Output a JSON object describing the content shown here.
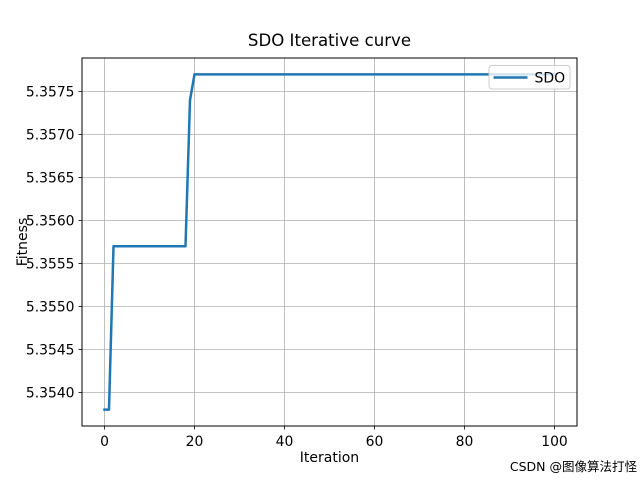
{
  "figure": {
    "title": "SDO Iterative curve",
    "xlabel": "Iteration",
    "ylabel": "Fitness",
    "legend": {
      "label": "SDO"
    },
    "watermark": "CSDN @图像算法打怪"
  },
  "colors": {
    "line": "#1f77b4",
    "grid": "#b0b0b0",
    "spine": "#000000",
    "text": "#000000",
    "watermark": "#d6d6d6",
    "legend_border": "#cccccc",
    "legend_background": "rgba(255,255,255,0.8)",
    "background": "#ffffff"
  },
  "chart_data": {
    "type": "line",
    "title": "SDO Iterative curve",
    "xlabel": "Iteration",
    "ylabel": "Fitness",
    "xlim": [
      -5,
      105
    ],
    "ylim": [
      5.35361,
      5.35789
    ],
    "xticks": [
      0,
      20,
      40,
      60,
      80,
      100
    ],
    "yticks": [
      5.354,
      5.3545,
      5.355,
      5.3555,
      5.356,
      5.3565,
      5.357,
      5.3575
    ],
    "ytick_decimals": 4,
    "grid": true,
    "legend_position": "upper right",
    "series": [
      {
        "name": "SDO",
        "x": [
          0,
          1,
          2,
          5,
          10,
          15,
          17,
          18,
          19,
          20,
          30,
          40,
          50,
          60,
          70,
          80,
          90,
          100
        ],
        "y": [
          5.3538,
          5.3538,
          5.3557,
          5.3557,
          5.3557,
          5.3557,
          5.3557,
          5.3557,
          5.3574,
          5.3577,
          5.3577,
          5.3577,
          5.3577,
          5.3577,
          5.3577,
          5.3577,
          5.3577,
          5.3577
        ]
      }
    ]
  }
}
